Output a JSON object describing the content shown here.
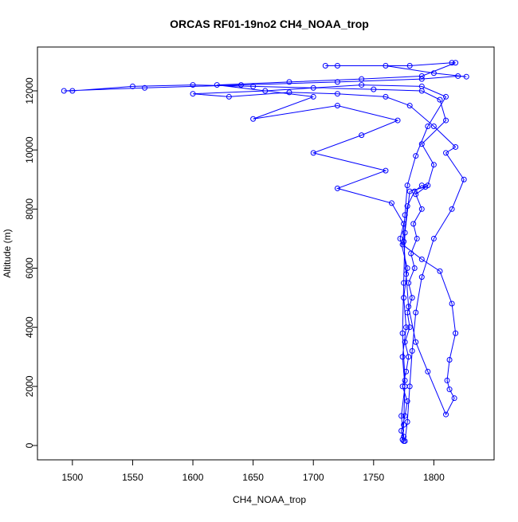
{
  "chart_data": {
    "type": "scatter-line",
    "title": "ORCAS RF01-19no2 CH4_NOAA_trop",
    "x_label": "CH4_NOAA_trop",
    "y_label": "Altitude (m)",
    "color": "#0000ff",
    "x": [
      1775,
      1773,
      1776,
      1778,
      1774,
      1777,
      1779,
      1776,
      1780,
      1778,
      1782,
      1779,
      1784,
      1781,
      1786,
      1783,
      1790,
      1785,
      1795,
      1800,
      1790,
      1810,
      1805,
      1790,
      1750,
      1700,
      1650,
      1600,
      1550,
      1500,
      1493,
      1560,
      1640,
      1720,
      1790,
      1820,
      1827,
      1800,
      1760,
      1720,
      1710,
      1780,
      1815,
      1818,
      1790,
      1740,
      1680,
      1620,
      1700,
      1650,
      1720,
      1770,
      1740,
      1700,
      1760,
      1720,
      1765,
      1775,
      1772,
      1778,
      1775,
      1777,
      1774,
      1776,
      1773,
      1775,
      1776,
      1778,
      1780,
      1782,
      1785,
      1790,
      1800,
      1815,
      1825,
      1810,
      1818,
      1800,
      1780,
      1760,
      1720,
      1680,
      1630,
      1600,
      1660,
      1740,
      1790,
      1810,
      1795,
      1785,
      1778,
      1776,
      1774,
      1790,
      1805,
      1815,
      1818,
      1813,
      1811,
      1813,
      1817,
      1810,
      1795,
      1785,
      1779,
      1777,
      1775,
      1778,
      1784,
      1790,
      1793,
      1780,
      1776,
      1775,
      1774,
      1776,
      1775,
      1774
    ],
    "values": [
      150,
      500,
      1000,
      1500,
      2000,
      2500,
      3000,
      3500,
      4000,
      4500,
      5000,
      5500,
      6000,
      6500,
      7000,
      7500,
      8000,
      8500,
      8800,
      9500,
      10200,
      11000,
      11700,
      12000,
      12050,
      12100,
      12150,
      12200,
      12150,
      12000,
      12000,
      12100,
      12200,
      12300,
      12400,
      12500,
      12480,
      12600,
      12850,
      12850,
      12850,
      12850,
      12950,
      12950,
      12500,
      12400,
      12300,
      12200,
      11800,
      11050,
      11500,
      11000,
      10500,
      9900,
      9300,
      8700,
      8200,
      7500,
      7000,
      6000,
      5000,
      4000,
      3000,
      2000,
      1000,
      300,
      150,
      800,
      2000,
      3200,
      4500,
      5700,
      7000,
      8000,
      9000,
      9900,
      10100,
      10800,
      11500,
      11800,
      11900,
      11950,
      11800,
      11900,
      12000,
      12200,
      12150,
      11800,
      10800,
      9800,
      8800,
      7800,
      6800,
      6300,
      5900,
      4800,
      3800,
      2900,
      2200,
      1900,
      1600,
      1050,
      2500,
      3500,
      4700,
      5800,
      6900,
      8100,
      8600,
      8800,
      8750,
      8600,
      7200,
      5500,
      3800,
      2200,
      700,
      200
    ],
    "xlim": [
      1471,
      1850
    ],
    "ylim": [
      -485,
      13483
    ],
    "xticks": [
      1500,
      1550,
      1600,
      1650,
      1700,
      1750,
      1800
    ],
    "yticks": [
      0,
      2000,
      4000,
      6000,
      8000,
      10000,
      12000
    ]
  }
}
